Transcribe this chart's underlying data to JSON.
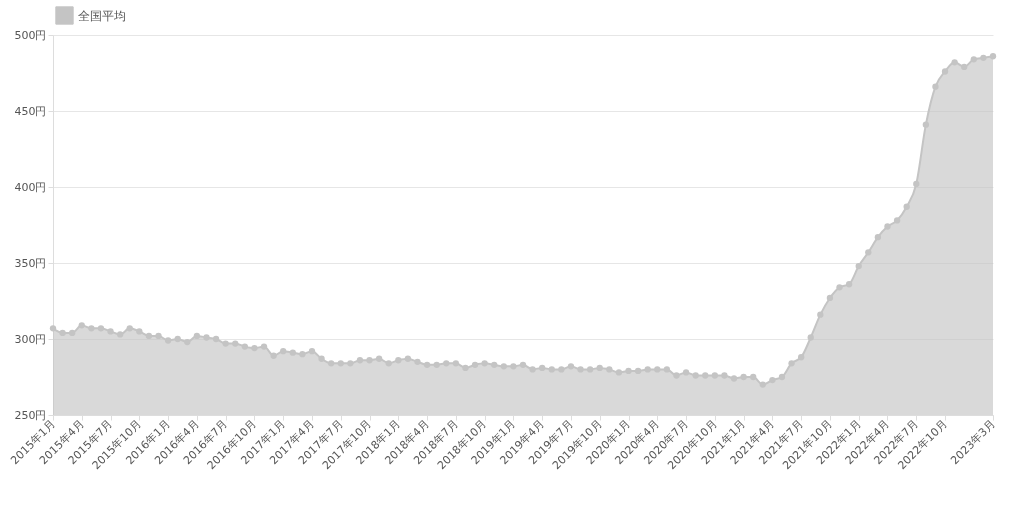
{
  "chart_data": {
    "type": "area",
    "categories": [
      "2015年1月",
      null,
      null,
      "2015年4月",
      null,
      null,
      "2015年7月",
      null,
      null,
      "2015年10月",
      null,
      null,
      "2016年1月",
      null,
      null,
      "2016年4月",
      null,
      null,
      "2016年7月",
      null,
      null,
      "2016年10月",
      null,
      null,
      "2017年1月",
      null,
      null,
      "2017年4月",
      null,
      null,
      "2017年7月",
      null,
      null,
      "2017年10月",
      null,
      null,
      "2018年1月",
      null,
      null,
      "2018年4月",
      null,
      null,
      "2018年7月",
      null,
      null,
      "2018年10月",
      null,
      null,
      "2019年1月",
      null,
      null,
      "2019年4月",
      null,
      null,
      "2019年7月",
      null,
      null,
      "2019年10月",
      null,
      null,
      "2020年1月",
      null,
      null,
      "2020年4月",
      null,
      null,
      "2020年7月",
      null,
      null,
      "2020年10月",
      null,
      null,
      "2021年1月",
      null,
      null,
      "2021年4月",
      null,
      null,
      "2021年7月",
      null,
      null,
      "2021年10月",
      null,
      null,
      "2022年1月",
      null,
      null,
      "2022年4月",
      null,
      null,
      "2022年7月",
      null,
      null,
      "2022年10月",
      null,
      null,
      null,
      null,
      "2023年3月"
    ],
    "series": [
      {
        "name": "全国平均",
        "color": "#c4c4c4",
        "values": [
          307,
          304,
          304,
          309,
          307,
          307,
          305,
          303,
          307,
          305,
          302,
          302,
          299,
          300,
          298,
          302,
          301,
          300,
          297,
          297,
          295,
          294,
          295,
          289,
          292,
          291,
          290,
          292,
          287,
          284,
          284,
          284,
          286,
          286,
          287,
          284,
          286,
          287,
          285,
          283,
          283,
          284,
          284,
          281,
          283,
          284,
          283,
          282,
          282,
          283,
          280,
          281,
          280,
          280,
          282,
          280,
          280,
          281,
          280,
          278,
          279,
          279,
          280,
          280,
          280,
          276,
          278,
          276,
          276,
          276,
          276,
          274,
          275,
          275,
          270,
          273,
          275,
          284,
          288,
          301,
          316,
          327,
          334,
          336,
          348,
          357,
          367,
          374,
          378,
          387,
          402,
          441,
          466,
          476,
          482,
          479,
          484,
          485,
          486
        ]
      }
    ],
    "ylim": [
      250,
      500
    ],
    "yticks": [
      {
        "value": 250,
        "label": "250円"
      },
      {
        "value": 300,
        "label": "300円"
      },
      {
        "value": 350,
        "label": "350円"
      },
      {
        "value": 400,
        "label": "400円"
      },
      {
        "value": 450,
        "label": "450円"
      },
      {
        "value": 500,
        "label": "500円"
      }
    ],
    "grid": "y",
    "legend": "top",
    "marker": "circle"
  }
}
